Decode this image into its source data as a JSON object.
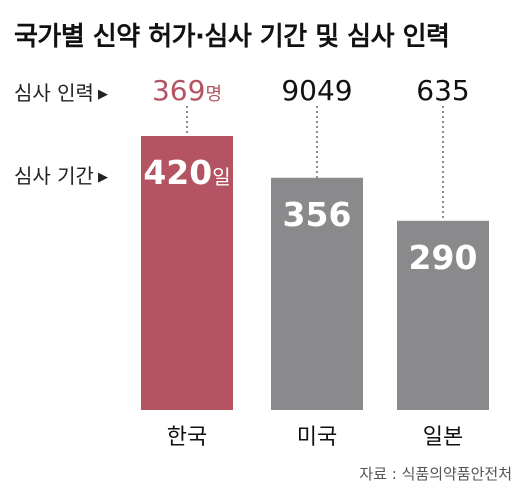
{
  "title": "국가별 신약 허가·심사 기간 및 심사 인력",
  "rows": {
    "staff_label": "심사 인력",
    "period_label": "심사 기간",
    "arrow": "▶"
  },
  "source": "자료 : 식품의약품안전처",
  "chart_data": {
    "type": "bar",
    "categories": [
      "한국",
      "미국",
      "일본"
    ],
    "series": [
      {
        "values": [
          420,
          356,
          290
        ],
        "unit": "일"
      }
    ],
    "staff": {
      "values": [
        369,
        9049,
        635
      ],
      "unit": "명"
    },
    "colors": {
      "highlight": "#b45463",
      "bar": "#8a8a8c",
      "highlight_text": "#b45463"
    },
    "ylim": [
      0,
      440
    ],
    "grid": false,
    "legend": "none"
  }
}
